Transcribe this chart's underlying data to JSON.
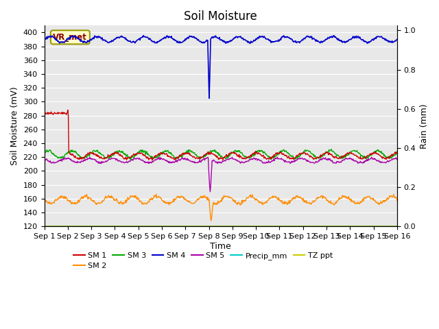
{
  "title": "Soil Moisture",
  "xlabel": "Time",
  "ylabel_left": "Soil Moisture (mV)",
  "ylabel_right": "Rain (mm)",
  "ylim_left": [
    120,
    410
  ],
  "ylim_right": [
    0.0,
    1.025
  ],
  "yticks_left": [
    120,
    140,
    160,
    180,
    200,
    220,
    240,
    260,
    280,
    300,
    320,
    340,
    360,
    380,
    400
  ],
  "yticks_right": [
    0.0,
    0.2,
    0.4,
    0.6,
    0.8,
    1.0
  ],
  "bg_color": "#e8e8e8",
  "annotation_text": "VR_met",
  "annotation_box_color": "#ffffcc",
  "annotation_box_edgecolor": "#999900",
  "annotation_text_color": "#8b0000",
  "sm1_color": "#cc0000",
  "sm2_color": "#ff8c00",
  "sm3_color": "#00aa00",
  "sm4_color": "#0000cc",
  "sm5_color": "#aa00aa",
  "precip_color": "#00cccc",
  "tz_color": "#cccc00",
  "legend_entries_row1": [
    "SM 1",
    "SM 2",
    "SM 3",
    "SM 4",
    "SM 5",
    "Precip_mm"
  ],
  "legend_entries_row2": [
    "TZ ppt"
  ],
  "grid_color": "#ffffff"
}
